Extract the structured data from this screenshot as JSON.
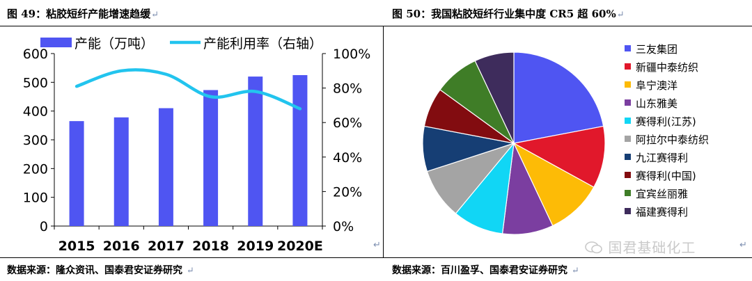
{
  "left": {
    "figure_title": "图 49：粘胶短纤产能增速趋缓",
    "source": "数据来源：隆众资讯、国泰君安证券研究"
  },
  "right": {
    "figure_title": "图 50：我国粘胶短纤行业集中度 CR5 超 60%",
    "source": "数据来源：百川盈孚、国泰君安证券研究"
  },
  "paragraph_mark": "↵",
  "watermark_text": "国君基础化工",
  "chart_data": [
    {
      "type": "bar+line",
      "categories": [
        "2015",
        "2016",
        "2017",
        "2018",
        "2019",
        "2020E"
      ],
      "series": [
        {
          "name": "产能（万吨）",
          "type": "bar",
          "axis": "left",
          "color": "#4f55f2",
          "values": [
            365,
            378,
            410,
            473,
            520,
            525
          ]
        },
        {
          "name": "产能利用率（右轴）",
          "type": "line",
          "axis": "right",
          "color": "#22c4ee",
          "values": [
            81,
            90,
            88,
            75,
            78,
            68
          ]
        }
      ],
      "y_left": {
        "lim": [
          0,
          600
        ],
        "ticks": [
          "0",
          "100",
          "200",
          "300",
          "400",
          "500",
          "600"
        ]
      },
      "y_right": {
        "lim": [
          0,
          100
        ],
        "ticks": [
          "0%",
          "20%",
          "40%",
          "60%",
          "80%",
          "100%"
        ]
      },
      "legend_position": "top",
      "grid": false
    },
    {
      "type": "pie",
      "labels": [
        "三友集团",
        "新疆中泰纺织",
        "阜宁澳洋",
        "山东雅美",
        "赛得利(江苏)",
        "阿拉尔中泰纺织",
        "九江赛得利",
        "赛得利(中国)",
        "宜宾丝丽雅",
        "福建赛得利"
      ],
      "values": [
        22,
        11,
        10,
        9,
        9,
        9,
        8,
        7,
        8,
        7
      ],
      "colors": [
        "#4f55f2",
        "#e1182b",
        "#fdbb06",
        "#7b3ea0",
        "#11d6f5",
        "#a4a4a4",
        "#163e74",
        "#820c10",
        "#3f7d27",
        "#3e2c5c"
      ],
      "legend_position": "right"
    }
  ]
}
